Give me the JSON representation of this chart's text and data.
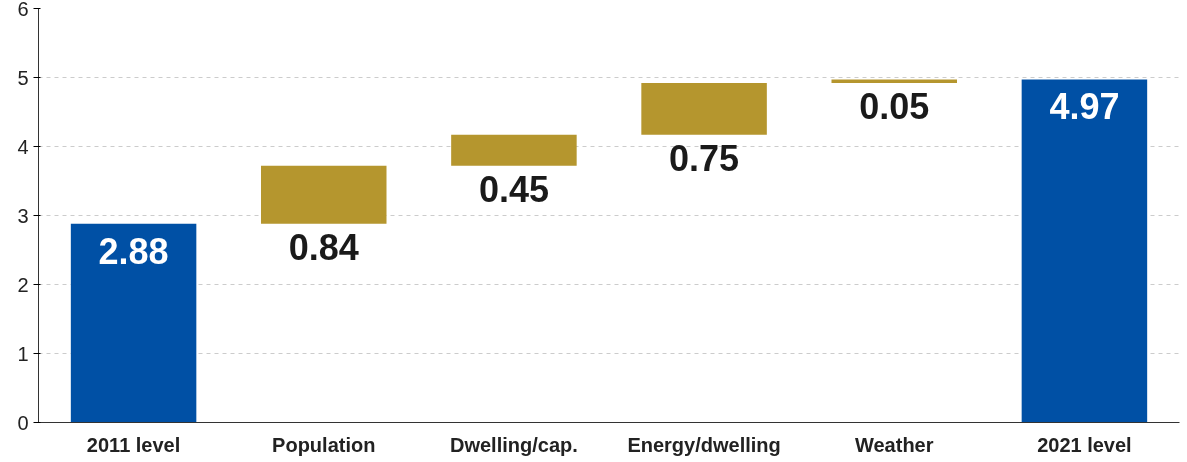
{
  "chart_data": {
    "type": "bar",
    "categories": [
      "2011 level",
      "Population",
      "Dwelling/cap.",
      "Energy/dwelling",
      "Weather",
      "2021 level"
    ],
    "values": [
      2.88,
      0.84,
      0.45,
      0.75,
      0.05,
      4.97
    ],
    "base": [
      0,
      2.88,
      3.72,
      4.17,
      4.92,
      0
    ],
    "colors": [
      "#0050a5",
      "#b5962e",
      "#b5962e",
      "#b5962e",
      "#b5962e",
      "#0050a5"
    ],
    "ylim": [
      0,
      6
    ],
    "yticks": [
      0,
      1,
      2,
      3,
      4,
      5,
      6
    ],
    "grid": "y",
    "data_labels": true
  }
}
